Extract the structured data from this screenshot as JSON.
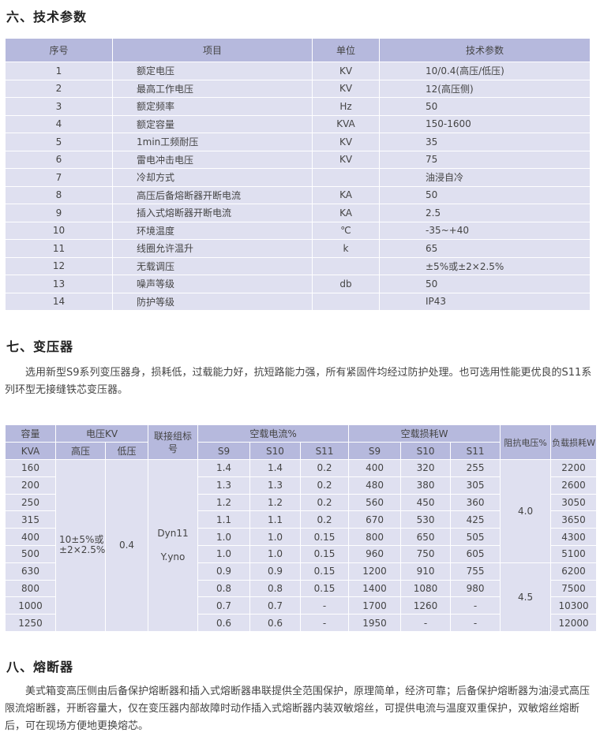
{
  "section6": {
    "title": "六、技术参数",
    "headers": [
      "序号",
      "项目",
      "单位",
      "技术参数"
    ],
    "rows": [
      [
        "1",
        "额定电压",
        "KV",
        "10/0.4(高压/低压)"
      ],
      [
        "2",
        "最高工作电压",
        "KV",
        "12(高压侧)"
      ],
      [
        "3",
        "额定频率",
        "Hz",
        "50"
      ],
      [
        "4",
        "额定容量",
        "KVA",
        "150-1600"
      ],
      [
        "5",
        "1min工频耐压",
        "KV",
        "35"
      ],
      [
        "6",
        "雷电冲击电压",
        "KV",
        "75"
      ],
      [
        "7",
        "冷却方式",
        "",
        "油浸自冷"
      ],
      [
        "8",
        "高压后备熔断器开断电流",
        "KA",
        "50"
      ],
      [
        "9",
        "插入式熔断器开断电流",
        "KA",
        "2.5"
      ],
      [
        "10",
        "环境温度",
        "℃",
        "-35~+40"
      ],
      [
        "11",
        "线圈允许温升",
        "k",
        "65"
      ],
      [
        "12",
        "无载调压",
        "",
        "±5%或±2×2.5%"
      ],
      [
        "13",
        "噪声等级",
        "db",
        "50"
      ],
      [
        "14",
        "防护等级",
        "",
        "IP43"
      ]
    ]
  },
  "section7": {
    "title": "七、变压器",
    "text": "选用新型S9系列变压器身，损耗低，过载能力好，抗短路能力强，所有紧固件均经过防护处理。也可选用性能更优良的S11系列环型无接缝铁芯变压器。",
    "table": {
      "h_capacity": "容量",
      "h_capacity_unit": "KVA",
      "h_voltage": "电压KV",
      "h_hv": "高压",
      "h_lv": "低压",
      "h_conn": "联接组标号",
      "h_noload_current": "空载电流%",
      "h_noload_loss": "空载损耗W",
      "h_s9": "S9",
      "h_s10": "S10",
      "h_s11": "S11",
      "h_impedance": "阻抗电压%",
      "h_load_loss": "负载损耗W",
      "hv_value": "10±5%或±2×2.5%",
      "lv_value": "0.4",
      "conn_value_1": "Dyn11",
      "conn_value_2": "Y.yno",
      "impedance_values": [
        "4.0",
        "4.5"
      ],
      "rows": [
        [
          "160",
          "1.4",
          "1.4",
          "0.2",
          "400",
          "320",
          "255",
          "2200"
        ],
        [
          "200",
          "1.3",
          "1.3",
          "0.2",
          "480",
          "380",
          "305",
          "2600"
        ],
        [
          "250",
          "1.2",
          "1.2",
          "0.2",
          "560",
          "450",
          "360",
          "3050"
        ],
        [
          "315",
          "1.1",
          "1.1",
          "0.2",
          "670",
          "530",
          "425",
          "3650"
        ],
        [
          "400",
          "1.0",
          "1.0",
          "0.15",
          "800",
          "650",
          "505",
          "4300"
        ],
        [
          "500",
          "1.0",
          "1.0",
          "0.15",
          "960",
          "750",
          "605",
          "5100"
        ],
        [
          "630",
          "0.9",
          "0.9",
          "0.15",
          "1200",
          "910",
          "755",
          "6200"
        ],
        [
          "800",
          "0.8",
          "0.8",
          "0.15",
          "1400",
          "1080",
          "980",
          "7500"
        ],
        [
          "1000",
          "0.7",
          "0.7",
          "-",
          "1700",
          "1260",
          "-",
          "10300"
        ],
        [
          "1250",
          "0.6",
          "0.6",
          "-",
          "1950",
          "-",
          "-",
          "12000"
        ]
      ]
    }
  },
  "section8": {
    "title": "八、熔断器",
    "text": "美式箱变高压侧由后备保护熔断器和插入式熔断器串联提供全范围保护，原理简单，经济可靠；后备保护熔断器为油浸式高压限流熔断器，开断容量大，仅在变压器内部故障时动作插入式熔断器内装双敏熔丝，可提供电流与温度双重保护，双敏熔丝熔断后，可在现场方便地更换熔芯。"
  }
}
